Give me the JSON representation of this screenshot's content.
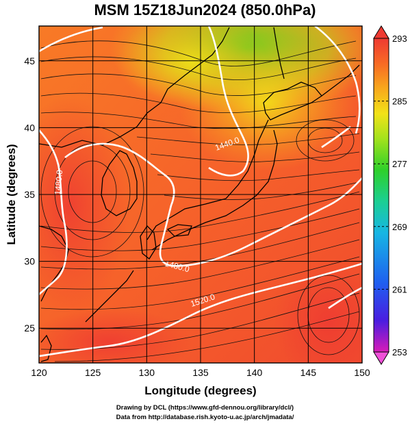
{
  "title": "MSM 15Z18Jun2024 (850.0hPa)",
  "axes": {
    "xlabel": "Longitude (degrees)",
    "ylabel": "Latitude  (degrees)",
    "x_ticks": [
      "120",
      "125",
      "130",
      "135",
      "140",
      "145",
      "150"
    ],
    "y_ticks": [
      "25",
      "30",
      "35",
      "40",
      "45"
    ],
    "xlim": [
      120,
      150
    ],
    "ylim": [
      22.4,
      47.6
    ]
  },
  "colorbar": {
    "ticks": [
      "293",
      "285",
      "277",
      "269",
      "261",
      "253"
    ],
    "range": [
      253,
      293
    ],
    "colors": [
      "#d81cb8",
      "#4a1de0",
      "#1f5ff0",
      "#17b6e4",
      "#1bcf93",
      "#2ed02a",
      "#a3e21c",
      "#f2e218",
      "#f8a81c",
      "#f86a24",
      "#ee3a32"
    ]
  },
  "contours": {
    "labels": [
      "1440.0",
      "1480.0",
      "1480.0",
      "1520.0"
    ],
    "color": "#ffffff"
  },
  "credits": {
    "line1": "Drawing by DCL (https://www.gfd-dennou.org/library/dcl/)",
    "line2": "Data from http://database.rish.kyoto-u.ac.jp/arch/jmadata/"
  }
}
